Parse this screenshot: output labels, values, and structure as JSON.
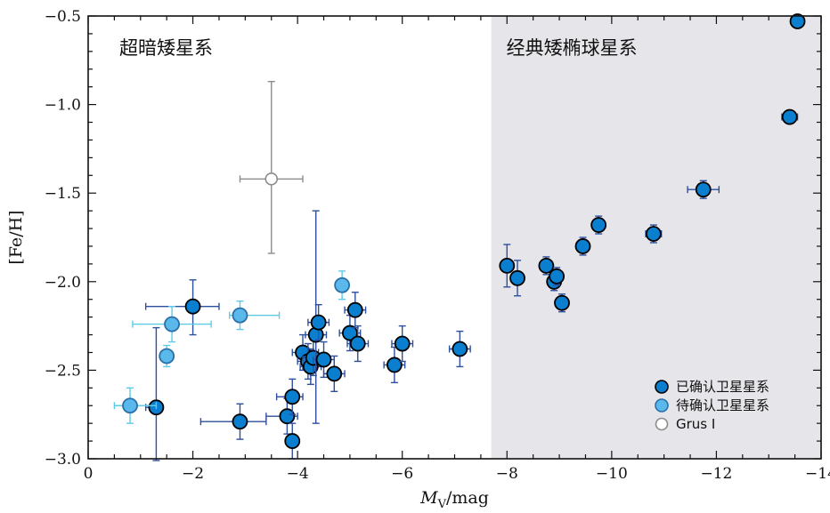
{
  "chart_data": {
    "type": "scatter",
    "xlabel_main": "M",
    "xlabel_sub": "V",
    "xlabel_unit": "/mag",
    "ylabel": "[Fe/H]",
    "xlim": [
      0,
      -14
    ],
    "ylim": [
      -3.0,
      -0.5
    ],
    "x_ticks": [
      0,
      -2,
      -4,
      -6,
      -8,
      -10,
      -12,
      -14
    ],
    "x_tick_labels": [
      "0",
      "−2",
      "−4",
      "−6",
      "−8",
      "−10",
      "−12",
      "−14"
    ],
    "y_ticks": [
      -3.0,
      -2.5,
      -2.0,
      -1.5,
      -1.0,
      -0.5
    ],
    "y_tick_labels": [
      "−3.0",
      "−2.5",
      "−2.0",
      "−1.5",
      "−1.0",
      "−0.5"
    ],
    "regions": [
      {
        "label": "超暗矮星系",
        "x_from": 0,
        "x_to": -7.7,
        "shaded": false
      },
      {
        "label": "经典矮椭球星系",
        "x_from": -7.7,
        "x_to": -14,
        "shaded": true,
        "color": "#e6e6ea"
      }
    ],
    "legend": {
      "placement": "bottom-right"
    },
    "series": [
      {
        "name": "已确认卫星星系",
        "marker": "filled-circle",
        "color": "#0a7fd0",
        "edge_color": "#000000",
        "error_color": "#2e4f9e",
        "points": [
          {
            "x": -1.3,
            "y": -2.71,
            "xerr": [
              0.2,
              0.0
            ],
            "yerr": [
              0.3,
              0.45
            ]
          },
          {
            "x": -2.0,
            "y": -2.14,
            "xerr": [
              0.9,
              0.5
            ],
            "yerr": [
              0.16,
              0.15
            ]
          },
          {
            "x": -2.9,
            "y": -2.79,
            "xerr": [
              0.75,
              0.5
            ],
            "yerr": [
              0.1,
              0.1
            ]
          },
          {
            "x": -3.8,
            "y": -2.76,
            "xerr": [
              0.4,
              0.2
            ],
            "yerr": [
              0.1,
              0.1
            ]
          },
          {
            "x": -3.9,
            "y": -2.65,
            "xerr": [
              0.3,
              0.2
            ],
            "yerr": [
              0.1,
              0.1
            ]
          },
          {
            "x": -3.9,
            "y": -2.9,
            "xerr": [
              0.1,
              0.1
            ],
            "yerr": [
              0.1,
              0.1
            ]
          },
          {
            "x": -4.1,
            "y": -2.4,
            "xerr": [
              0.2,
              0.3
            ],
            "yerr": [
              0.1,
              0.1
            ]
          },
          {
            "x": -4.2,
            "y": -2.45,
            "xerr": [
              0.2,
              0.2
            ],
            "yerr": [
              0.1,
              0.1
            ]
          },
          {
            "x": -4.25,
            "y": -2.48,
            "xerr": [
              0.2,
              0.2
            ],
            "yerr": [
              0.1,
              0.1
            ]
          },
          {
            "x": -4.3,
            "y": -2.43,
            "xerr": [
              0.2,
              0.2
            ],
            "yerr": [
              0.1,
              0.1
            ]
          },
          {
            "x": -4.35,
            "y": -2.3,
            "xerr": [
              0.2,
              0.2
            ],
            "yerr": [
              0.5,
              0.7
            ]
          },
          {
            "x": -4.4,
            "y": -2.23,
            "xerr": [
              0.2,
              0.2
            ],
            "yerr": [
              0.1,
              0.1
            ]
          },
          {
            "x": -4.5,
            "y": -2.44,
            "xerr": [
              0.2,
              0.2
            ],
            "yerr": [
              0.1,
              0.1
            ]
          },
          {
            "x": -4.7,
            "y": -2.52,
            "xerr": [
              0.2,
              0.2
            ],
            "yerr": [
              0.1,
              0.1
            ]
          },
          {
            "x": -5.0,
            "y": -2.29,
            "xerr": [
              0.2,
              0.2
            ],
            "yerr": [
              0.1,
              0.1
            ]
          },
          {
            "x": -5.1,
            "y": -2.16,
            "xerr": [
              0.2,
              0.2
            ],
            "yerr": [
              0.1,
              0.1
            ]
          },
          {
            "x": -5.15,
            "y": -2.35,
            "xerr": [
              0.2,
              0.2
            ],
            "yerr": [
              0.1,
              0.1
            ]
          },
          {
            "x": -5.85,
            "y": -2.47,
            "xerr": [
              0.2,
              0.2
            ],
            "yerr": [
              0.1,
              0.1
            ]
          },
          {
            "x": -6.0,
            "y": -2.35,
            "xerr": [
              0.2,
              0.2
            ],
            "yerr": [
              0.1,
              0.1
            ]
          },
          {
            "x": -7.1,
            "y": -2.38,
            "xerr": [
              0.2,
              0.2
            ],
            "yerr": [
              0.1,
              0.1
            ]
          },
          {
            "x": -8.0,
            "y": -1.91,
            "xerr": [
              0.1,
              0.1
            ],
            "yerr": [
              0.12,
              0.12
            ]
          },
          {
            "x": -8.2,
            "y": -1.98,
            "xerr": [
              0.1,
              0.1
            ],
            "yerr": [
              0.1,
              0.1
            ]
          },
          {
            "x": -8.75,
            "y": -1.91,
            "xerr": [
              0.1,
              0.1
            ],
            "yerr": [
              0.05,
              0.05
            ]
          },
          {
            "x": -8.9,
            "y": -2.0,
            "xerr": [
              0.1,
              0.1
            ],
            "yerr": [
              0.05,
              0.05
            ]
          },
          {
            "x": -8.95,
            "y": -1.97,
            "xerr": [
              0.1,
              0.1
            ],
            "yerr": [
              0.05,
              0.05
            ]
          },
          {
            "x": -9.05,
            "y": -2.12,
            "xerr": [
              0.1,
              0.1
            ],
            "yerr": [
              0.05,
              0.05
            ]
          },
          {
            "x": -9.45,
            "y": -1.8,
            "xerr": [
              0.1,
              0.1
            ],
            "yerr": [
              0.05,
              0.05
            ]
          },
          {
            "x": -9.75,
            "y": -1.68,
            "xerr": [
              0.1,
              0.1
            ],
            "yerr": [
              0.05,
              0.05
            ]
          },
          {
            "x": -10.8,
            "y": -1.73,
            "xerr": [
              0.15,
              0.15
            ],
            "yerr": [
              0.05,
              0.05
            ]
          },
          {
            "x": -11.75,
            "y": -1.48,
            "xerr": [
              0.3,
              0.3
            ],
            "yerr": [
              0.05,
              0.05
            ]
          },
          {
            "x": -13.4,
            "y": -1.07,
            "xerr": [
              0.15,
              0.15
            ],
            "yerr": [
              0.03,
              0.03
            ]
          },
          {
            "x": -13.55,
            "y": -0.53,
            "xerr": [
              0.1,
              0.1
            ],
            "yerr": [
              0.03,
              0.03
            ]
          }
        ]
      },
      {
        "name": "待确认卫星星系",
        "marker": "filled-circle",
        "color": "#5bb8ea",
        "edge_color": "#2a6fa8",
        "error_color": "#5ccbe8",
        "points": [
          {
            "x": -0.8,
            "y": -2.7,
            "xerr": [
              0.3,
              0.5
            ],
            "yerr": [
              0.1,
              0.1
            ]
          },
          {
            "x": -1.5,
            "y": -2.42,
            "xerr": [
              0.1,
              0.1
            ],
            "yerr": [
              0.06,
              0.06
            ]
          },
          {
            "x": -1.6,
            "y": -2.24,
            "xerr": [
              0.75,
              0.75
            ],
            "yerr": [
              0.1,
              0.1
            ]
          },
          {
            "x": -2.9,
            "y": -2.19,
            "xerr": [
              0.2,
              0.75
            ],
            "yerr": [
              0.08,
              0.08
            ]
          },
          {
            "x": -4.85,
            "y": -2.02,
            "xerr": [
              0.1,
              0.1
            ],
            "yerr": [
              0.08,
              0.08
            ]
          }
        ]
      },
      {
        "name": "Grus I",
        "marker": "open-circle",
        "color": "#8c8c8c",
        "edge_color": "#8c8c8c",
        "error_color": "#8c8c8c",
        "points": [
          {
            "x": -3.5,
            "y": -1.42,
            "xerr": [
              0.6,
              0.6
            ],
            "yerr": [
              0.42,
              0.55
            ]
          }
        ]
      }
    ]
  }
}
